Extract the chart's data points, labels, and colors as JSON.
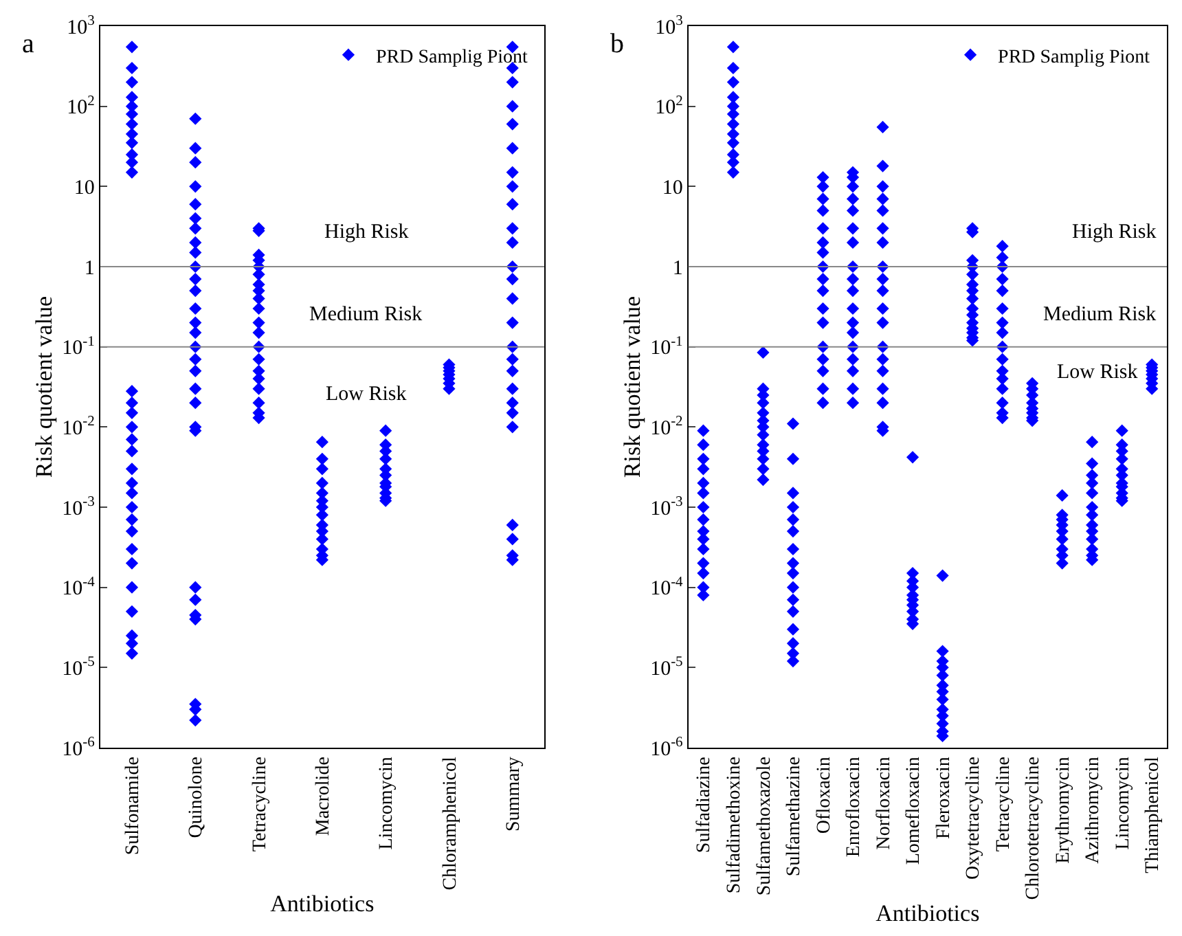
{
  "chart_data": [
    {
      "type": "scatter",
      "title": "a",
      "xlabel": "Antibiotics",
      "ylabel": "Risk quotient value",
      "categories": [
        "Sulfonamide",
        "Quinolone",
        "Tetracycline",
        "Macrolide",
        "Lincomycin",
        "Chloramphenicol",
        "Summary"
      ],
      "log": true,
      "ylim": [
        1e-06,
        1000
      ],
      "yticks": [
        {
          "value": 1e-06,
          "label": "10$^{-6}$"
        },
        {
          "value": 1e-05,
          "label": "10$^{-5}$"
        },
        {
          "value": 0.0001,
          "label": "10$^{-4}$"
        },
        {
          "value": 0.001,
          "label": "10$^{-3}$"
        },
        {
          "value": 0.01,
          "label": "10$^{-2}$"
        },
        {
          "value": 0.1,
          "label": "10$^{-1}$"
        },
        1,
        10,
        {
          "value": 100,
          "label": "10$^{2}$"
        },
        {
          "value": 1000,
          "label": "10$^{3}$"
        }
      ],
      "legend": "top right",
      "marker": "diamond",
      "ref_lines": [
        {
          "axis": "y",
          "value": 1,
          "color": "#888888"
        },
        {
          "axis": "y",
          "value": 0.1,
          "color": "#888888"
        }
      ],
      "annotations": [
        "High Risk",
        "Medium Risk",
        "Low Risk"
      ],
      "series": [
        {
          "name": "PRD Samplig Piont",
          "color": "#0000ff",
          "x": [
            "Sulfonamide",
            "Sulfonamide",
            "Sulfonamide",
            "Sulfonamide",
            "Sulfonamide",
            "Sulfonamide",
            "Sulfonamide",
            "Sulfonamide",
            "Sulfonamide",
            "Sulfonamide",
            "Sulfonamide",
            "Sulfonamide",
            "Sulfonamide",
            "Sulfonamide",
            "Sulfonamide",
            "Sulfonamide",
            "Sulfonamide",
            "Sulfonamide",
            "Sulfonamide",
            "Sulfonamide",
            "Sulfonamide",
            "Sulfonamide",
            "Sulfonamide",
            "Sulfonamide",
            "Sulfonamide",
            "Sulfonamide",
            "Sulfonamide",
            "Sulfonamide",
            "Sulfonamide",
            "Sulfonamide",
            "Sulfonamide",
            "Quinolone",
            "Quinolone",
            "Quinolone",
            "Quinolone",
            "Quinolone",
            "Quinolone",
            "Quinolone",
            "Quinolone",
            "Quinolone",
            "Quinolone",
            "Quinolone",
            "Quinolone",
            "Quinolone",
            "Quinolone",
            "Quinolone",
            "Quinolone",
            "Quinolone",
            "Quinolone",
            "Quinolone",
            "Quinolone",
            "Quinolone",
            "Quinolone",
            "Quinolone",
            "Quinolone",
            "Quinolone",
            "Quinolone",
            "Quinolone",
            "Quinolone",
            "Quinolone",
            "Tetracycline",
            "Tetracycline",
            "Tetracycline",
            "Tetracycline",
            "Tetracycline",
            "Tetracycline",
            "Tetracycline",
            "Tetracycline",
            "Tetracycline",
            "Tetracycline",
            "Tetracycline",
            "Tetracycline",
            "Tetracycline",
            "Tetracycline",
            "Tetracycline",
            "Tetracycline",
            "Tetracycline",
            "Tetracycline",
            "Tetracycline",
            "Tetracycline",
            "Macrolide",
            "Macrolide",
            "Macrolide",
            "Macrolide",
            "Macrolide",
            "Macrolide",
            "Macrolide",
            "Macrolide",
            "Macrolide",
            "Macrolide",
            "Macrolide",
            "Macrolide",
            "Macrolide",
            "Macrolide",
            "Lincomycin",
            "Lincomycin",
            "Lincomycin",
            "Lincomycin",
            "Lincomycin",
            "Lincomycin",
            "Lincomycin",
            "Lincomycin",
            "Lincomycin",
            "Lincomycin",
            "Lincomycin",
            "Chloramphenicol",
            "Chloramphenicol",
            "Chloramphenicol",
            "Chloramphenicol",
            "Chloramphenicol",
            "Chloramphenicol",
            "Chloramphenicol",
            "Summary",
            "Summary",
            "Summary",
            "Summary",
            "Summary",
            "Summary",
            "Summary",
            "Summary",
            "Summary",
            "Summary",
            "Summary",
            "Summary",
            "Summary",
            "Summary",
            "Summary",
            "Summary",
            "Summary",
            "Summary",
            "Summary",
            "Summary",
            "Summary",
            "Summary",
            "Summary",
            "Summary",
            "Summary",
            "Summary"
          ],
          "values": [
            550,
            300,
            200,
            130,
            100,
            80,
            60,
            45,
            35,
            25,
            20,
            15,
            0.028,
            0.02,
            0.015,
            0.01,
            0.007,
            0.005,
            0.003,
            0.002,
            0.0015,
            0.001,
            0.0007,
            0.0005,
            0.0003,
            0.0002,
            0.0001,
            5e-05,
            2.5e-05,
            2e-05,
            1.5e-05,
            70,
            30,
            20,
            10,
            6,
            4,
            3,
            2,
            1.5,
            1,
            0.7,
            0.5,
            0.3,
            0.2,
            0.15,
            0.1,
            0.07,
            0.05,
            0.03,
            0.02,
            0.01,
            0.009,
            0.0001,
            7e-05,
            4.5e-05,
            4e-05,
            3.5e-06,
            3e-06,
            2.2e-06,
            3,
            2.8,
            1.4,
            1.2,
            1,
            0.8,
            0.6,
            0.5,
            0.4,
            0.3,
            0.2,
            0.15,
            0.1,
            0.07,
            0.05,
            0.04,
            0.03,
            0.02,
            0.015,
            0.013,
            0.0065,
            0.004,
            0.003,
            0.002,
            0.0015,
            0.0012,
            0.001,
            0.0008,
            0.0006,
            0.0005,
            0.0004,
            0.0003,
            0.00025,
            0.00022,
            0.009,
            0.006,
            0.005,
            0.004,
            0.003,
            0.0025,
            0.002,
            0.0018,
            0.0015,
            0.0013,
            0.0012,
            0.06,
            0.055,
            0.05,
            0.045,
            0.04,
            0.035,
            0.03,
            550,
            300,
            200,
            100,
            60,
            30,
            15,
            10,
            6,
            3,
            2,
            1,
            0.7,
            0.4,
            0.2,
            0.1,
            0.07,
            0.05,
            0.03,
            0.02,
            0.015,
            0.01,
            0.0006,
            0.0004,
            0.00025,
            0.00022
          ]
        }
      ]
    },
    {
      "type": "scatter",
      "title": "b",
      "xlabel": "Antibiotics",
      "ylabel": "Risk quotient value",
      "categories": [
        "Sulfadiazine",
        "Sulfadimethoxine",
        "Sulfamethoxazole",
        "Sulfamethazine",
        "Ofloxacin",
        "Enrofloxacin",
        "Norfloxacin",
        "Lomefloxacin",
        "Fleroxacin",
        "Oxytetracycline",
        "Tetracycline",
        "Chlorotetracycline",
        "Erythromycin",
        "Azithromycin",
        "Lincomycin",
        "Thiamphenicol"
      ],
      "log": true,
      "ylim": [
        1e-06,
        1000
      ],
      "yticks": [
        {
          "value": 1e-06,
          "label": "10$^{-6}$"
        },
        {
          "value": 1e-05,
          "label": "10$^{-5}$"
        },
        {
          "value": 0.0001,
          "label": "10$^{-4}$"
        },
        {
          "value": 0.001,
          "label": "10$^{-3}$"
        },
        {
          "value": 0.01,
          "label": "10$^{-2}$"
        },
        {
          "value": 0.1,
          "label": "10$^{-1}$"
        },
        1,
        10,
        {
          "value": 100,
          "label": "10$^{2}$"
        },
        {
          "value": 1000,
          "label": "10$^{3}$"
        }
      ],
      "legend": "top right",
      "marker": "diamond",
      "ref_lines": [
        {
          "axis": "y",
          "value": 1,
          "color": "#888888"
        },
        {
          "axis": "y",
          "value": 0.1,
          "color": "#888888"
        }
      ],
      "annotations": [
        "High Risk",
        "Medium Risk",
        "Low Risk"
      ],
      "series": [
        {
          "name": "PRD Samplig Piont",
          "color": "#0000ff",
          "x": [
            "Sulfadiazine",
            "Sulfadiazine",
            "Sulfadiazine",
            "Sulfadiazine",
            "Sulfadiazine",
            "Sulfadiazine",
            "Sulfadiazine",
            "Sulfadiazine",
            "Sulfadiazine",
            "Sulfadiazine",
            "Sulfadiazine",
            "Sulfadiazine",
            "Sulfadiazine",
            "Sulfadiazine",
            "Sulfadiazine",
            "Sulfadimethoxine",
            "Sulfadimethoxine",
            "Sulfadimethoxine",
            "Sulfadimethoxine",
            "Sulfadimethoxine",
            "Sulfadimethoxine",
            "Sulfadimethoxine",
            "Sulfadimethoxine",
            "Sulfadimethoxine",
            "Sulfadimethoxine",
            "Sulfadimethoxine",
            "Sulfadimethoxine",
            "Sulfamethoxazole",
            "Sulfamethoxazole",
            "Sulfamethoxazole",
            "Sulfamethoxazole",
            "Sulfamethoxazole",
            "Sulfamethoxazole",
            "Sulfamethoxazole",
            "Sulfamethoxazole",
            "Sulfamethoxazole",
            "Sulfamethoxazole",
            "Sulfamethoxazole",
            "Sulfamethoxazole",
            "Sulfamethoxazole",
            "Sulfamethazine",
            "Sulfamethazine",
            "Sulfamethazine",
            "Sulfamethazine",
            "Sulfamethazine",
            "Sulfamethazine",
            "Sulfamethazine",
            "Sulfamethazine",
            "Sulfamethazine",
            "Sulfamethazine",
            "Sulfamethazine",
            "Sulfamethazine",
            "Sulfamethazine",
            "Sulfamethazine",
            "Sulfamethazine",
            "Sulfamethazine",
            "Ofloxacin",
            "Ofloxacin",
            "Ofloxacin",
            "Ofloxacin",
            "Ofloxacin",
            "Ofloxacin",
            "Ofloxacin",
            "Ofloxacin",
            "Ofloxacin",
            "Ofloxacin",
            "Ofloxacin",
            "Ofloxacin",
            "Ofloxacin",
            "Ofloxacin",
            "Ofloxacin",
            "Ofloxacin",
            "Ofloxacin",
            "Enrofloxacin",
            "Enrofloxacin",
            "Enrofloxacin",
            "Enrofloxacin",
            "Enrofloxacin",
            "Enrofloxacin",
            "Enrofloxacin",
            "Enrofloxacin",
            "Enrofloxacin",
            "Enrofloxacin",
            "Enrofloxacin",
            "Enrofloxacin",
            "Enrofloxacin",
            "Enrofloxacin",
            "Enrofloxacin",
            "Enrofloxacin",
            "Enrofloxacin",
            "Enrofloxacin",
            "Norfloxacin",
            "Norfloxacin",
            "Norfloxacin",
            "Norfloxacin",
            "Norfloxacin",
            "Norfloxacin",
            "Norfloxacin",
            "Norfloxacin",
            "Norfloxacin",
            "Norfloxacin",
            "Norfloxacin",
            "Norfloxacin",
            "Norfloxacin",
            "Norfloxacin",
            "Norfloxacin",
            "Norfloxacin",
            "Norfloxacin",
            "Norfloxacin",
            "Norfloxacin",
            "Lomefloxacin",
            "Lomefloxacin",
            "Lomefloxacin",
            "Lomefloxacin",
            "Lomefloxacin",
            "Lomefloxacin",
            "Lomefloxacin",
            "Lomefloxacin",
            "Lomefloxacin",
            "Lomefloxacin",
            "Fleroxacin",
            "Fleroxacin",
            "Fleroxacin",
            "Fleroxacin",
            "Fleroxacin",
            "Fleroxacin",
            "Fleroxacin",
            "Fleroxacin",
            "Fleroxacin",
            "Fleroxacin",
            "Fleroxacin",
            "Fleroxacin",
            "Fleroxacin",
            "Oxytetracycline",
            "Oxytetracycline",
            "Oxytetracycline",
            "Oxytetracycline",
            "Oxytetracycline",
            "Oxytetracycline",
            "Oxytetracycline",
            "Oxytetracycline",
            "Oxytetracycline",
            "Oxytetracycline",
            "Oxytetracycline",
            "Oxytetracycline",
            "Oxytetracycline",
            "Oxytetracycline",
            "Oxytetracycline",
            "Tetracycline",
            "Tetracycline",
            "Tetracycline",
            "Tetracycline",
            "Tetracycline",
            "Tetracycline",
            "Tetracycline",
            "Tetracycline",
            "Tetracycline",
            "Tetracycline",
            "Tetracycline",
            "Tetracycline",
            "Tetracycline",
            "Tetracycline",
            "Tetracycline",
            "Tetracycline",
            "Chlorotetracycline",
            "Chlorotetracycline",
            "Chlorotetracycline",
            "Chlorotetracycline",
            "Chlorotetracycline",
            "Chlorotetracycline",
            "Chlorotetracycline",
            "Chlorotetracycline",
            "Erythromycin",
            "Erythromycin",
            "Erythromycin",
            "Erythromycin",
            "Erythromycin",
            "Erythromycin",
            "Erythromycin",
            "Erythromycin",
            "Erythromycin",
            "Azithromycin",
            "Azithromycin",
            "Azithromycin",
            "Azithromycin",
            "Azithromycin",
            "Azithromycin",
            "Azithromycin",
            "Azithromycin",
            "Azithromycin",
            "Azithromycin",
            "Azithromycin",
            "Azithromycin",
            "Azithromycin",
            "Lincomycin",
            "Lincomycin",
            "Lincomycin",
            "Lincomycin",
            "Lincomycin",
            "Lincomycin",
            "Lincomycin",
            "Lincomycin",
            "Lincomycin",
            "Lincomycin",
            "Lincomycin",
            "Thiamphenicol",
            "Thiamphenicol",
            "Thiamphenicol",
            "Thiamphenicol",
            "Thiamphenicol",
            "Thiamphenicol",
            "Thiamphenicol"
          ],
          "values": [
            0.009,
            0.006,
            0.004,
            0.003,
            0.002,
            0.0015,
            0.001,
            0.0007,
            0.0005,
            0.0004,
            0.0003,
            0.0002,
            0.00015,
            0.0001,
            8e-05,
            550,
            300,
            200,
            130,
            100,
            80,
            60,
            45,
            35,
            25,
            20,
            15,
            0.085,
            0.03,
            0.025,
            0.02,
            0.015,
            0.012,
            0.01,
            0.008,
            0.006,
            0.005,
            0.004,
            0.003,
            0.0022,
            0.011,
            0.004,
            0.0015,
            0.001,
            0.0007,
            0.0005,
            0.0003,
            0.0002,
            0.00015,
            0.0001,
            7e-05,
            5e-05,
            3e-05,
            2e-05,
            1.5e-05,
            1.2e-05,
            13,
            10,
            7,
            5,
            3,
            2,
            1.5,
            1,
            0.7,
            0.5,
            0.3,
            0.2,
            0.1,
            0.07,
            0.05,
            0.03,
            0.02,
            15,
            13,
            10,
            7,
            5,
            3,
            2,
            1,
            0.7,
            0.5,
            0.3,
            0.2,
            0.15,
            0.1,
            0.07,
            0.05,
            0.03,
            0.02,
            55,
            18,
            10,
            7,
            5,
            3,
            2,
            1,
            0.7,
            0.5,
            0.3,
            0.2,
            0.1,
            0.07,
            0.05,
            0.03,
            0.02,
            0.01,
            0.009,
            0.0042,
            0.00015,
            0.00012,
            0.0001,
            8e-05,
            7e-05,
            6e-05,
            5e-05,
            4e-05,
            3.5e-05,
            0.00014,
            1.6e-05,
            1.2e-05,
            1e-05,
            8e-06,
            6e-06,
            5e-06,
            4e-06,
            3e-06,
            2.5e-06,
            2e-06,
            1.6e-06,
            1.4e-06,
            3,
            2.7,
            1.2,
            1,
            0.8,
            0.6,
            0.5,
            0.4,
            0.3,
            0.25,
            0.2,
            0.17,
            0.15,
            0.13,
            0.12,
            1.8,
            1.3,
            1,
            0.7,
            0.5,
            0.3,
            0.2,
            0.15,
            0.1,
            0.07,
            0.05,
            0.04,
            0.03,
            0.02,
            0.015,
            0.013,
            0.035,
            0.03,
            0.025,
            0.02,
            0.017,
            0.015,
            0.013,
            0.012,
            0.0014,
            0.0008,
            0.0007,
            0.0006,
            0.0005,
            0.0004,
            0.0003,
            0.00025,
            0.0002,
            0.0065,
            0.0035,
            0.0025,
            0.002,
            0.0015,
            0.001,
            0.0008,
            0.0006,
            0.0005,
            0.0004,
            0.0003,
            0.00025,
            0.00022,
            0.009,
            0.006,
            0.005,
            0.004,
            0.003,
            0.0025,
            0.002,
            0.0018,
            0.0015,
            0.0013,
            0.0012,
            0.06,
            0.055,
            0.05,
            0.045,
            0.04,
            0.035,
            0.03
          ]
        }
      ]
    }
  ]
}
